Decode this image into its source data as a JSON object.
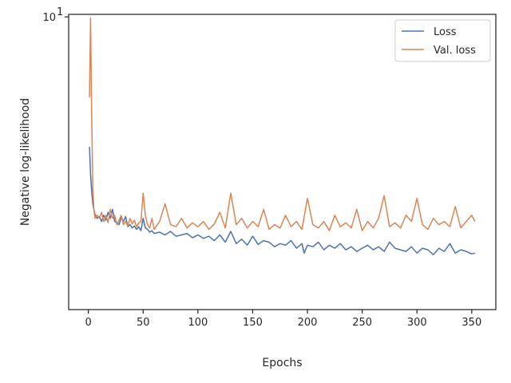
{
  "chart_data": {
    "type": "line",
    "title": "",
    "xlabel": "Epochs",
    "ylabel": "Negative log-likelihood",
    "xlim": [
      -18,
      372
    ],
    "ylim": [
      1.0,
      10.2
    ],
    "yscale": "log",
    "xticks": [
      0,
      50,
      100,
      150,
      200,
      250,
      300,
      350
    ],
    "xtick_labels": [
      "0",
      "50",
      "100",
      "150",
      "200",
      "250",
      "300",
      "350"
    ],
    "yticks": [
      10
    ],
    "ytick_base": "10",
    "ytick_exp": "1",
    "grid": false,
    "legend_position": "top-right",
    "series": [
      {
        "name": "Loss",
        "color": "#4c72b0",
        "x": [
          1,
          2,
          3,
          4,
          5,
          6,
          8,
          10,
          12,
          14,
          16,
          18,
          20,
          22,
          24,
          26,
          28,
          30,
          32,
          34,
          36,
          38,
          40,
          42,
          44,
          46,
          48,
          50,
          52,
          54,
          56,
          58,
          60,
          65,
          70,
          75,
          80,
          85,
          90,
          95,
          100,
          105,
          110,
          115,
          120,
          125,
          130,
          135,
          140,
          145,
          150,
          155,
          160,
          165,
          170,
          175,
          180,
          185,
          190,
          195,
          197,
          200,
          205,
          210,
          215,
          220,
          225,
          230,
          235,
          240,
          245,
          250,
          255,
          260,
          265,
          270,
          275,
          280,
          285,
          290,
          295,
          300,
          305,
          310,
          315,
          320,
          325,
          330,
          335,
          340,
          345,
          350,
          353
        ],
        "values": [
          3.6,
          2.9,
          2.55,
          2.3,
          2.2,
          2.12,
          2.05,
          2.08,
          2.0,
          2.1,
          2.02,
          2.15,
          2.05,
          2.2,
          2.0,
          1.98,
          1.95,
          2.06,
          2.0,
          2.08,
          1.92,
          1.95,
          1.9,
          1.93,
          1.88,
          1.92,
          1.86,
          2.05,
          1.9,
          1.88,
          1.84,
          1.86,
          1.82,
          1.84,
          1.8,
          1.85,
          1.78,
          1.8,
          1.82,
          1.76,
          1.8,
          1.75,
          1.78,
          1.72,
          1.8,
          1.7,
          1.85,
          1.68,
          1.74,
          1.66,
          1.78,
          1.67,
          1.72,
          1.7,
          1.64,
          1.68,
          1.66,
          1.72,
          1.62,
          1.68,
          1.56,
          1.66,
          1.64,
          1.7,
          1.6,
          1.66,
          1.62,
          1.68,
          1.6,
          1.64,
          1.58,
          1.62,
          1.66,
          1.6,
          1.64,
          1.58,
          1.7,
          1.62,
          1.6,
          1.58,
          1.64,
          1.56,
          1.62,
          1.6,
          1.54,
          1.62,
          1.58,
          1.68,
          1.56,
          1.6,
          1.58,
          1.55,
          1.56
        ]
      },
      {
        "name": "Val. loss",
        "color": "#dd8452",
        "x": [
          1,
          2,
          3,
          4,
          5,
          6,
          8,
          10,
          12,
          14,
          16,
          18,
          20,
          22,
          24,
          26,
          28,
          30,
          32,
          34,
          36,
          38,
          40,
          42,
          44,
          46,
          48,
          50,
          52,
          54,
          56,
          58,
          60,
          65,
          70,
          75,
          80,
          85,
          90,
          95,
          100,
          105,
          110,
          115,
          120,
          125,
          130,
          135,
          140,
          145,
          150,
          155,
          160,
          165,
          170,
          175,
          180,
          185,
          190,
          195,
          200,
          205,
          210,
          215,
          220,
          225,
          230,
          235,
          240,
          245,
          250,
          255,
          260,
          265,
          270,
          275,
          280,
          285,
          290,
          295,
          300,
          305,
          310,
          315,
          320,
          325,
          330,
          335,
          340,
          345,
          350,
          353
        ],
        "values": [
          5.3,
          9.9,
          4.7,
          2.6,
          2.2,
          2.05,
          2.1,
          2.05,
          2.15,
          2.0,
          2.1,
          1.98,
          2.2,
          2.05,
          2.1,
          1.95,
          2.02,
          2.1,
          1.95,
          2.0,
          1.93,
          2.05,
          1.96,
          2.02,
          1.92,
          1.98,
          2.0,
          2.5,
          2.1,
          1.95,
          1.9,
          2.05,
          1.88,
          2.0,
          2.3,
          1.95,
          1.92,
          2.05,
          1.9,
          1.98,
          1.92,
          2.0,
          1.88,
          1.96,
          2.15,
          1.9,
          2.5,
          1.95,
          2.05,
          1.9,
          2.0,
          1.92,
          2.2,
          1.88,
          1.95,
          1.9,
          2.1,
          1.92,
          2.0,
          1.88,
          2.4,
          1.95,
          1.9,
          2.0,
          1.86,
          2.1,
          1.92,
          1.98,
          1.9,
          2.2,
          1.86,
          2.0,
          1.9,
          2.05,
          2.45,
          1.92,
          1.98,
          1.9,
          2.1,
          2.0,
          2.4,
          1.95,
          1.88,
          2.05,
          1.95,
          2.0,
          1.92,
          2.25,
          1.9,
          2.0,
          2.1,
          2.0
        ]
      }
    ]
  }
}
